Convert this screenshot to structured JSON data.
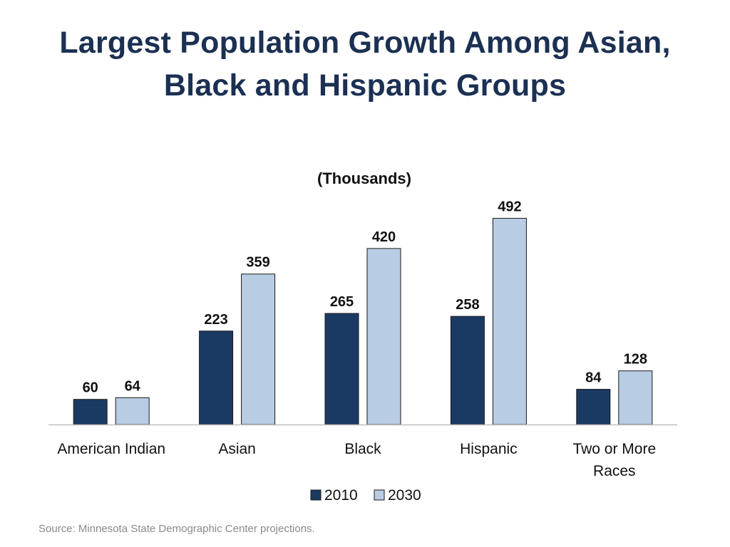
{
  "slide": {
    "title_line1": "Largest Population Growth Among Asian,",
    "title_line2": "Black and Hispanic Groups",
    "source": "Source: Minnesota State Demographic Center projections."
  },
  "colors": {
    "title": "#1b3052",
    "series_2010": "#1b3a63",
    "series_2030": "#b8cce4",
    "text": "#111111",
    "axis": "#bfbfbf",
    "source": "#8a8a8a"
  },
  "chart_data": {
    "type": "bar",
    "title": "(Thousands)",
    "categories": [
      [
        "American Indian"
      ],
      [
        "Asian"
      ],
      [
        "Black"
      ],
      [
        "Hispanic"
      ],
      [
        "Two or More",
        "Races"
      ]
    ],
    "series": [
      {
        "name": "2010",
        "values": [
          60,
          223,
          265,
          258,
          84
        ]
      },
      {
        "name": "2030",
        "values": [
          64,
          359,
          420,
          492,
          128
        ]
      }
    ],
    "xlabel": "",
    "ylabel": "",
    "ylim": [
      0,
      520
    ],
    "grid": false,
    "legend": "bottom-center"
  }
}
